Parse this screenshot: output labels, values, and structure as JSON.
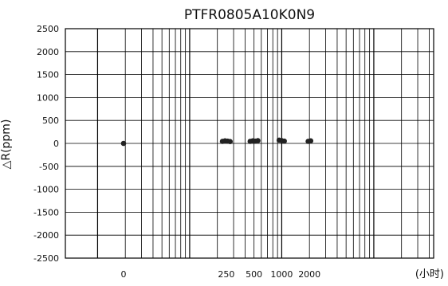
{
  "chart_data": {
    "type": "scatter",
    "title": "PTFR0805A10K0N9",
    "ylabel": "△R(ppm)",
    "xlabel": "(小时)",
    "x_scale": "log",
    "x_ticks": [
      "0",
      "250",
      "500",
      "1000",
      "2000"
    ],
    "y_ticks": [
      "2500",
      "2000",
      "1500",
      "1000",
      "500",
      "0",
      "-500",
      "-1000",
      "-1500",
      "-2000",
      "-2500"
    ],
    "ylim": [
      -2500,
      2500
    ],
    "grid": true,
    "series": [
      {
        "points": [
          {
            "x": "0",
            "y": 0
          },
          {
            "x": "250",
            "y": 45
          },
          {
            "x": "250",
            "y": 55
          },
          {
            "x": "250",
            "y": 50
          },
          {
            "x": "250",
            "y": 40
          },
          {
            "x": "500",
            "y": 45
          },
          {
            "x": "500",
            "y": 55
          },
          {
            "x": "500",
            "y": 50
          },
          {
            "x": "500",
            "y": 60
          },
          {
            "x": "1000",
            "y": 70
          },
          {
            "x": "1000",
            "y": 60
          },
          {
            "x": "1000",
            "y": 50
          },
          {
            "x": "2000",
            "y": 45
          },
          {
            "x": "2000",
            "y": 55
          }
        ]
      }
    ],
    "colors": {
      "marker": "#222222",
      "grid": "#000000",
      "background": "#ffffff"
    }
  }
}
